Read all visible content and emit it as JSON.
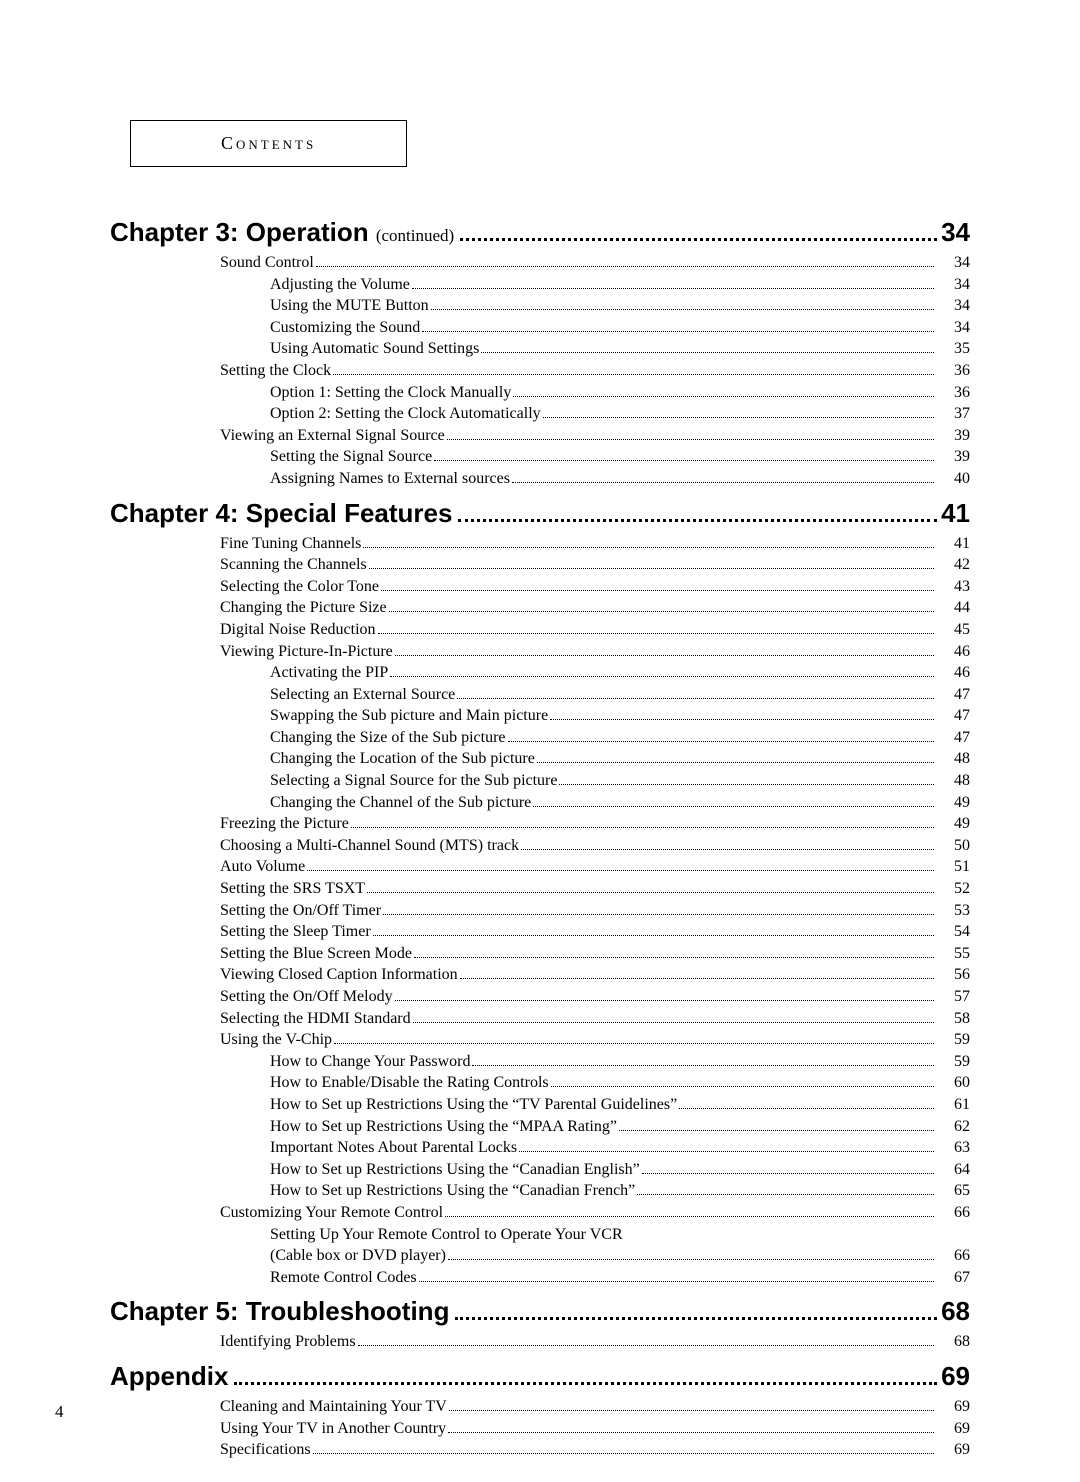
{
  "header": {
    "label": "Contents"
  },
  "page_number": "4",
  "sections": [
    {
      "title": "Chapter 3: Operation",
      "continued": "(continued)",
      "page": "34",
      "entries": [
        {
          "indent": 1,
          "title": "Sound Control",
          "page": "34"
        },
        {
          "indent": 2,
          "title": "Adjusting the Volume",
          "page": "34"
        },
        {
          "indent": 2,
          "title": "Using the MUTE Button",
          "page": "34"
        },
        {
          "indent": 2,
          "title": "Customizing the Sound",
          "page": "34"
        },
        {
          "indent": 2,
          "title": "Using Automatic Sound Settings",
          "page": "35"
        },
        {
          "indent": 1,
          "title": "Setting the Clock",
          "page": "36"
        },
        {
          "indent": 2,
          "title": "Option 1: Setting the Clock Manually",
          "page": "36"
        },
        {
          "indent": 2,
          "title": "Option 2: Setting the Clock Automatically",
          "page": "37"
        },
        {
          "indent": 1,
          "title": "Viewing an External Signal Source",
          "page": "39"
        },
        {
          "indent": 2,
          "title": "Setting the Signal Source",
          "page": "39"
        },
        {
          "indent": 2,
          "title": "Assigning Names to External sources",
          "page": "40"
        }
      ]
    },
    {
      "title": "Chapter 4: Special Features",
      "continued": "",
      "page": "41",
      "entries": [
        {
          "indent": 1,
          "title": "Fine Tuning Channels",
          "page": "41"
        },
        {
          "indent": 1,
          "title": "Scanning the Channels",
          "page": "42"
        },
        {
          "indent": 1,
          "title": "Selecting the Color Tone",
          "page": "43"
        },
        {
          "indent": 1,
          "title": "Changing the Picture Size",
          "page": "44"
        },
        {
          "indent": 1,
          "title": "Digital Noise Reduction",
          "page": "45"
        },
        {
          "indent": 1,
          "title": "Viewing Picture-In-Picture",
          "page": "46"
        },
        {
          "indent": 2,
          "title": "Activating the PIP",
          "page": "46"
        },
        {
          "indent": 2,
          "title": "Selecting an External Source",
          "page": "47"
        },
        {
          "indent": 2,
          "title": "Swapping the Sub picture and Main picture",
          "page": "47"
        },
        {
          "indent": 2,
          "title": "Changing the Size of the Sub picture",
          "page": "47"
        },
        {
          "indent": 2,
          "title": "Changing the Location of the Sub picture",
          "page": "48"
        },
        {
          "indent": 2,
          "title": "Selecting a Signal Source for the Sub picture",
          "page": "48"
        },
        {
          "indent": 2,
          "title": "Changing the Channel of the Sub picture",
          "page": "49"
        },
        {
          "indent": 1,
          "title": "Freezing the Picture",
          "page": "49"
        },
        {
          "indent": 1,
          "title": "Choosing a Multi-Channel Sound (MTS) track",
          "page": "50"
        },
        {
          "indent": 1,
          "title": "Auto Volume",
          "page": "51"
        },
        {
          "indent": 1,
          "title": "Setting the SRS TSXT",
          "page": "52"
        },
        {
          "indent": 1,
          "title": "Setting the On/Off Timer",
          "page": "53"
        },
        {
          "indent": 1,
          "title": "Setting the Sleep Timer",
          "page": "54"
        },
        {
          "indent": 1,
          "title": "Setting the Blue Screen Mode",
          "page": "55"
        },
        {
          "indent": 1,
          "title": "Viewing Closed Caption Information",
          "page": "56"
        },
        {
          "indent": 1,
          "title": "Setting the On/Off Melody",
          "page": "57"
        },
        {
          "indent": 1,
          "title": "Selecting the HDMI Standard",
          "page": "58"
        },
        {
          "indent": 1,
          "title": "Using the V-Chip",
          "page": "59"
        },
        {
          "indent": 2,
          "title": "How to Change Your Password",
          "page": "59"
        },
        {
          "indent": 2,
          "title": "How to Enable/Disable the Rating Controls",
          "page": "60"
        },
        {
          "indent": 2,
          "title": "How to Set up Restrictions Using the “TV Parental Guidelines”",
          "page": "61"
        },
        {
          "indent": 2,
          "title": "How to Set up Restrictions Using the “MPAA Rating”",
          "page": "62"
        },
        {
          "indent": 2,
          "title": "Important Notes About Parental Locks",
          "page": "63"
        },
        {
          "indent": 2,
          "title": "How to Set up Restrictions Using the “Canadian English”",
          "page": "64"
        },
        {
          "indent": 2,
          "title": "How to Set up Restrictions Using the “Canadian French”",
          "page": "65"
        },
        {
          "indent": 1,
          "title": "Customizing Your Remote Control",
          "page": "66"
        },
        {
          "indent": 2,
          "title": "Setting Up Your Remote Control to Operate Your VCR",
          "page": "",
          "nodots": true
        },
        {
          "indent": 2,
          "title": "(Cable box or DVD player)",
          "page": "66"
        },
        {
          "indent": 2,
          "title": "Remote Control Codes",
          "page": "67"
        }
      ]
    },
    {
      "title": "Chapter 5: Troubleshooting",
      "continued": "",
      "page": "68",
      "entries": [
        {
          "indent": 1,
          "title": "Identifying Problems",
          "page": "68"
        }
      ]
    },
    {
      "title": "Appendix",
      "continued": "",
      "page": "69",
      "entries": [
        {
          "indent": 1,
          "title": "Cleaning and Maintaining Your TV",
          "page": "69"
        },
        {
          "indent": 1,
          "title": "Using Your TV in Another Country",
          "page": "69"
        },
        {
          "indent": 1,
          "title": "Specifications",
          "page": "69"
        }
      ]
    }
  ]
}
